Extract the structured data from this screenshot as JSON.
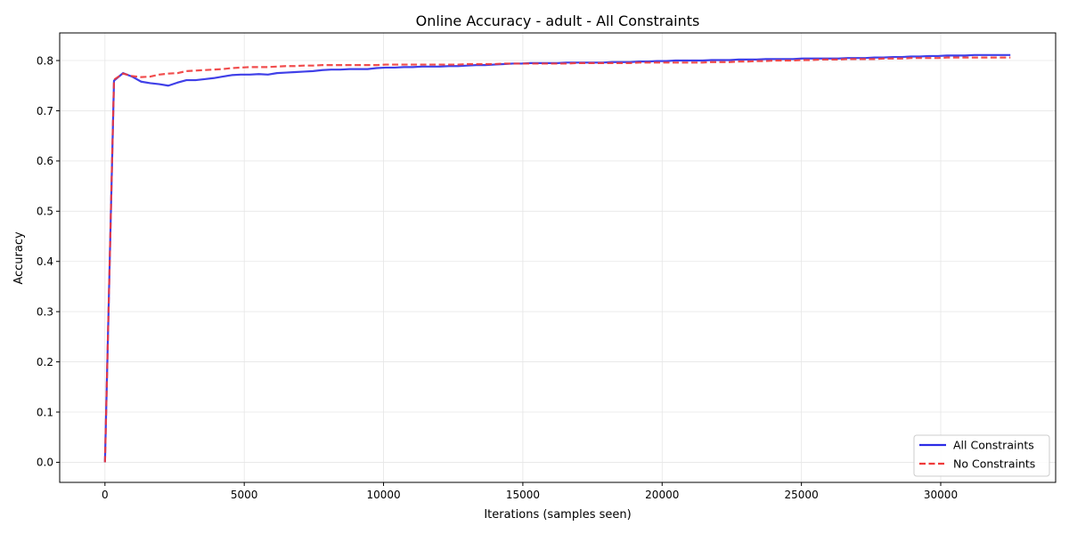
{
  "chart_data": {
    "type": "line",
    "title": "Online Accuracy - adult - All Constraints",
    "xlabel": "Iterations (samples seen)",
    "ylabel": "Accuracy",
    "xlim": [
      -1625,
      34125
    ],
    "ylim": [
      -0.04,
      0.855
    ],
    "xticks": [
      0,
      5000,
      10000,
      15000,
      20000,
      25000,
      30000
    ],
    "yticks": [
      0.0,
      0.1,
      0.2,
      0.3,
      0.4,
      0.5,
      0.6,
      0.7,
      0.8
    ],
    "grid": true,
    "legend_position": "lower-right",
    "colors": {
      "all_constraints": "#2b2be6",
      "no_constraints": "#f03a3a"
    },
    "series": [
      {
        "name": "All Constraints",
        "line_style": "solid",
        "x": [
          0,
          325,
          650,
          975,
          1300,
          1625,
          1950,
          2275,
          2600,
          2925,
          3250,
          3575,
          3900,
          4225,
          4550,
          4875,
          5200,
          5525,
          5850,
          6175,
          6500,
          6825,
          7150,
          7475,
          7800,
          8125,
          8450,
          8775,
          9100,
          9425,
          9750,
          10075,
          10400,
          10725,
          11050,
          11375,
          11700,
          12025,
          12350,
          12675,
          13000,
          13325,
          13650,
          13975,
          14300,
          14625,
          14950,
          15275,
          15600,
          15925,
          16250,
          16575,
          16900,
          17225,
          17550,
          17875,
          18200,
          18525,
          18850,
          19175,
          19500,
          19825,
          20150,
          20475,
          20800,
          21125,
          21450,
          21775,
          22100,
          22425,
          22750,
          23075,
          23400,
          23725,
          24050,
          24375,
          24700,
          25025,
          25350,
          25675,
          26000,
          26325,
          26650,
          26975,
          27300,
          27625,
          27950,
          28275,
          28600,
          28925,
          29250,
          29575,
          29900,
          30225,
          30550,
          30875,
          31200,
          31525,
          31850,
          32175,
          32500
        ],
        "y": [
          0.0,
          0.76,
          0.775,
          0.768,
          0.758,
          0.755,
          0.753,
          0.75,
          0.756,
          0.761,
          0.761,
          0.763,
          0.765,
          0.768,
          0.771,
          0.772,
          0.772,
          0.773,
          0.772,
          0.775,
          0.776,
          0.777,
          0.778,
          0.779,
          0.781,
          0.782,
          0.782,
          0.783,
          0.783,
          0.783,
          0.785,
          0.786,
          0.786,
          0.787,
          0.787,
          0.788,
          0.788,
          0.788,
          0.789,
          0.789,
          0.79,
          0.791,
          0.791,
          0.792,
          0.793,
          0.794,
          0.794,
          0.795,
          0.795,
          0.795,
          0.795,
          0.796,
          0.796,
          0.796,
          0.796,
          0.796,
          0.797,
          0.797,
          0.797,
          0.798,
          0.798,
          0.799,
          0.799,
          0.8,
          0.8,
          0.8,
          0.8,
          0.801,
          0.801,
          0.801,
          0.802,
          0.802,
          0.802,
          0.803,
          0.803,
          0.803,
          0.803,
          0.804,
          0.804,
          0.804,
          0.804,
          0.804,
          0.805,
          0.805,
          0.805,
          0.806,
          0.806,
          0.807,
          0.807,
          0.808,
          0.808,
          0.809,
          0.809,
          0.81,
          0.81,
          0.81,
          0.811,
          0.811,
          0.811,
          0.811,
          0.811
        ]
      },
      {
        "name": "No Constraints",
        "line_style": "dashed",
        "x": [
          0,
          325,
          650,
          975,
          1300,
          1625,
          1950,
          2275,
          2600,
          2925,
          3250,
          3575,
          3900,
          4225,
          4550,
          4875,
          5200,
          5525,
          5850,
          6175,
          6500,
          6825,
          7150,
          7475,
          7800,
          8125,
          8450,
          8775,
          9100,
          9425,
          9750,
          10075,
          10400,
          10725,
          11050,
          11375,
          11700,
          12025,
          12350,
          12675,
          13000,
          13325,
          13650,
          13975,
          14300,
          14625,
          14950,
          15275,
          15600,
          15925,
          16250,
          16575,
          16900,
          17225,
          17550,
          17875,
          18200,
          18525,
          18850,
          19175,
          19500,
          19825,
          20150,
          20475,
          20800,
          21125,
          21450,
          21775,
          22100,
          22425,
          22750,
          23075,
          23400,
          23725,
          24050,
          24375,
          24700,
          25025,
          25350,
          25675,
          26000,
          26325,
          26650,
          26975,
          27300,
          27625,
          27950,
          28275,
          28600,
          28925,
          29250,
          29575,
          29900,
          30225,
          30550,
          30875,
          31200,
          31525,
          31850,
          32175,
          32500
        ],
        "y": [
          0.0,
          0.762,
          0.774,
          0.769,
          0.767,
          0.768,
          0.772,
          0.774,
          0.775,
          0.779,
          0.78,
          0.781,
          0.782,
          0.783,
          0.785,
          0.786,
          0.787,
          0.787,
          0.787,
          0.788,
          0.789,
          0.789,
          0.79,
          0.79,
          0.791,
          0.791,
          0.791,
          0.791,
          0.791,
          0.791,
          0.791,
          0.792,
          0.792,
          0.792,
          0.792,
          0.792,
          0.792,
          0.792,
          0.792,
          0.792,
          0.793,
          0.793,
          0.793,
          0.793,
          0.794,
          0.794,
          0.794,
          0.794,
          0.794,
          0.794,
          0.794,
          0.794,
          0.795,
          0.795,
          0.795,
          0.795,
          0.795,
          0.795,
          0.795,
          0.796,
          0.796,
          0.796,
          0.796,
          0.796,
          0.796,
          0.796,
          0.796,
          0.797,
          0.797,
          0.797,
          0.798,
          0.798,
          0.799,
          0.799,
          0.8,
          0.8,
          0.8,
          0.801,
          0.801,
          0.802,
          0.802,
          0.802,
          0.803,
          0.803,
          0.803,
          0.803,
          0.804,
          0.804,
          0.804,
          0.805,
          0.805,
          0.805,
          0.805,
          0.806,
          0.806,
          0.806,
          0.806,
          0.806,
          0.806,
          0.806,
          0.806
        ]
      }
    ]
  }
}
